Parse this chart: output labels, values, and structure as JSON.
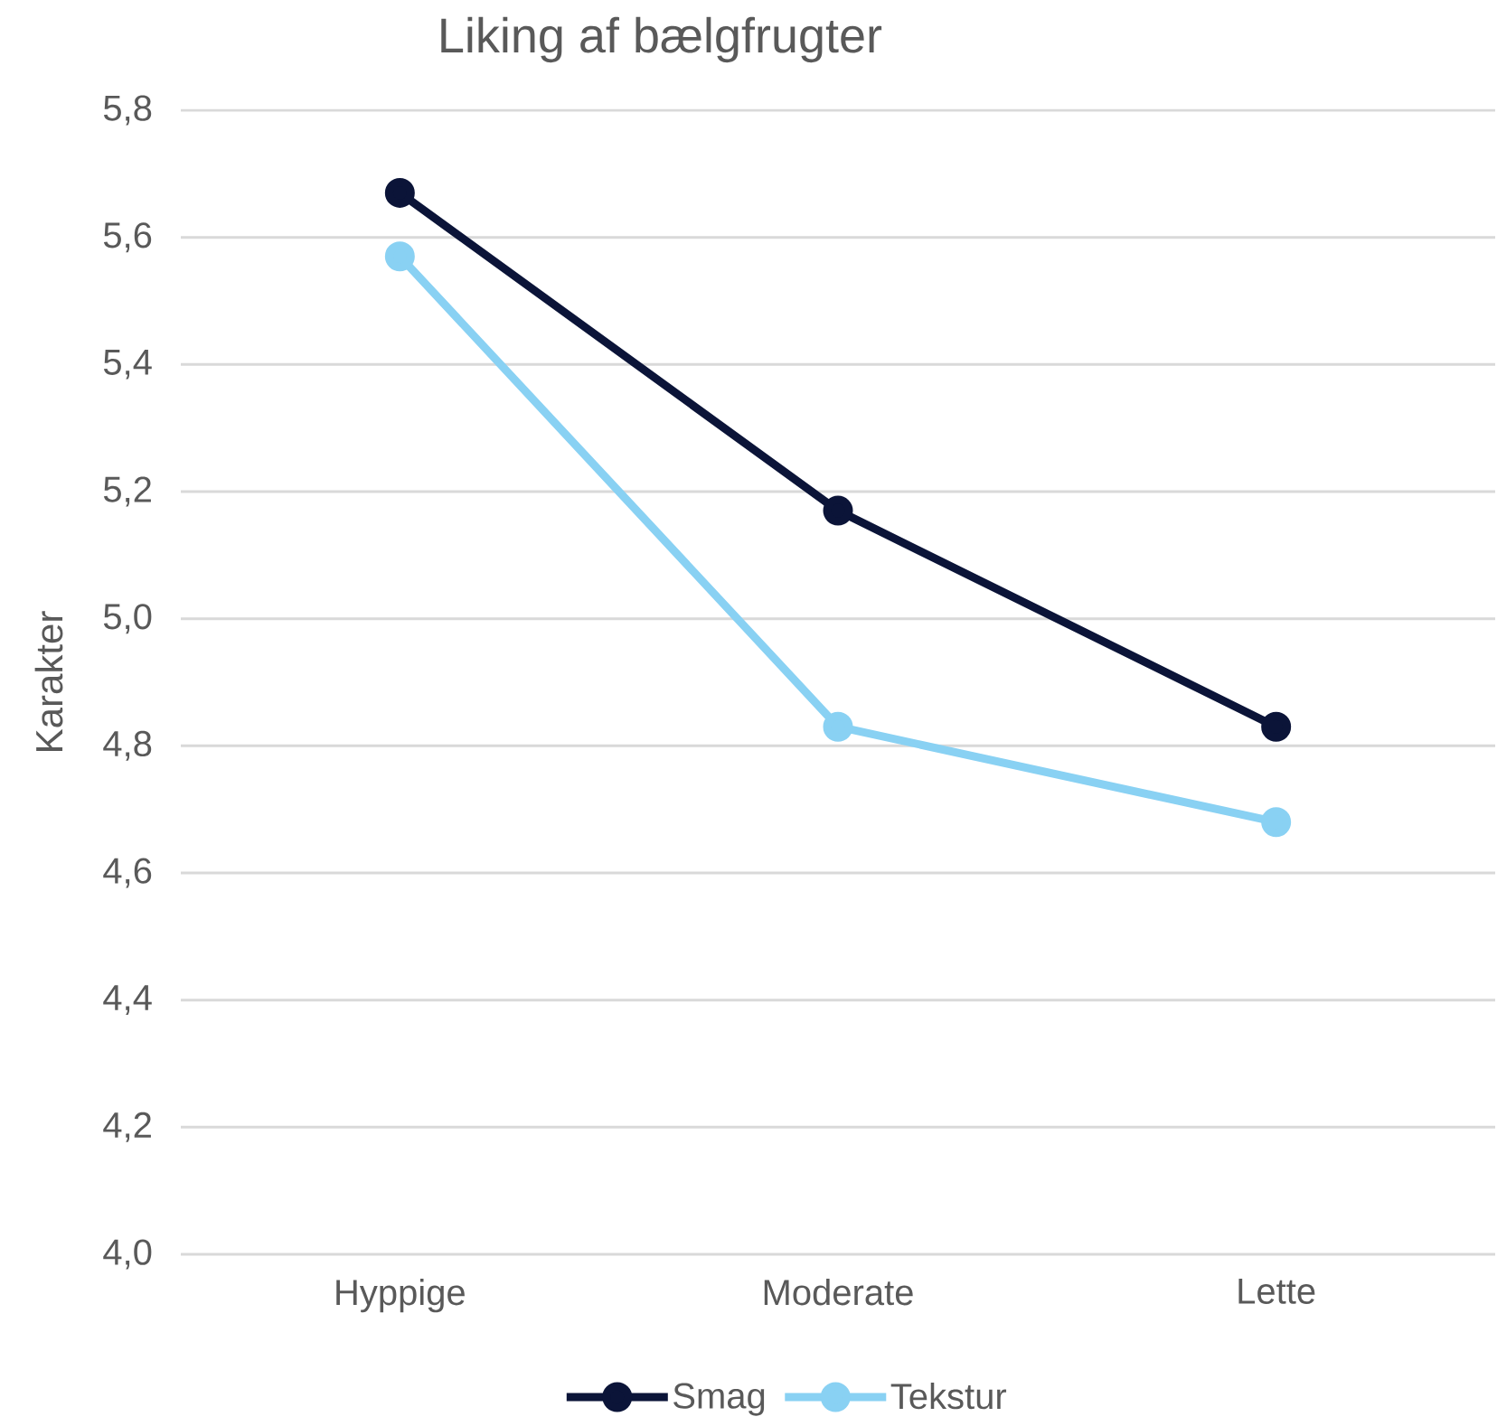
{
  "chart_data": {
    "type": "line",
    "title": "Liking af bælgfrugter",
    "ylabel": "Karakter",
    "categories": [
      "Hyppige",
      "Moderate",
      "Lette"
    ],
    "series": [
      {
        "name": "Smag",
        "color": "#0b1438",
        "values": [
          5.67,
          5.17,
          4.83
        ]
      },
      {
        "name": "Tekstur",
        "color": "#89d1f3",
        "values": [
          5.57,
          4.83,
          4.68
        ]
      }
    ],
    "ylim": [
      4.0,
      5.8
    ],
    "yticks": [
      {
        "value": 4.0,
        "label": "4,0"
      },
      {
        "value": 4.2,
        "label": "4,2"
      },
      {
        "value": 4.4,
        "label": "4,4"
      },
      {
        "value": 4.6,
        "label": "4,6"
      },
      {
        "value": 4.8,
        "label": "4,8"
      },
      {
        "value": 5.0,
        "label": "5,0"
      },
      {
        "value": 5.2,
        "label": "5,2"
      },
      {
        "value": 5.4,
        "label": "5,4"
      },
      {
        "value": 5.6,
        "label": "5,6"
      },
      {
        "value": 5.8,
        "label": "5,8"
      }
    ],
    "grid": "y",
    "legend": "bottom",
    "marker": "circle"
  }
}
